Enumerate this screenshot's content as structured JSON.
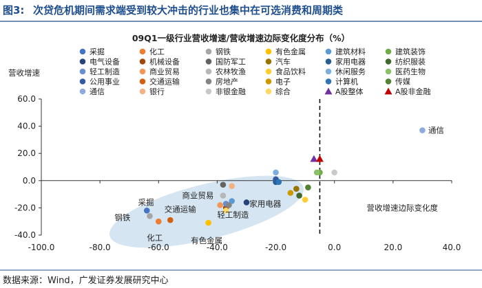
{
  "header": {
    "figure_prefix": "图3:",
    "title": "次贷危机期间需求端受到较大冲击的行业也集中在可选消费和周期类"
  },
  "footer": {
    "source": "数据来源：Wind，广发证券发展研究中心"
  },
  "colors": {
    "accent": "#1f4e8c",
    "ellipse": "#cfe0f0"
  },
  "chart_data": {
    "type": "scatter",
    "title": "09Q1一级行业营收增速/营收增速边际变化度分布（%）",
    "xlabel": "营收增速边际变化度",
    "ylabel": "营收增速",
    "xlim": [
      -100,
      40
    ],
    "ylim": [
      -40,
      60
    ],
    "xticks": [
      "-100.0",
      "-80.0",
      "-60.0",
      "-40.0",
      "-20.0",
      "0.0",
      "20.0",
      "40.0"
    ],
    "yticks": [
      "60.0",
      "40.0",
      "20.0",
      "0.0",
      "-20.0",
      "-40.0"
    ],
    "reference_line_x": -5,
    "series": [
      {
        "name": "采掘",
        "color": "#4472c4",
        "marker": "circle",
        "x": -64,
        "y": -22
      },
      {
        "name": "化工",
        "color": "#ed7d31",
        "marker": "circle",
        "x": -60,
        "y": -30
      },
      {
        "name": "钢铁",
        "color": "#a5a5a5",
        "marker": "circle",
        "x": -63,
        "y": -26
      },
      {
        "name": "有色金属",
        "color": "#ffc000",
        "marker": "circle",
        "x": -43,
        "y": -31
      },
      {
        "name": "建筑材料",
        "color": "#5b9bd5",
        "marker": "circle",
        "x": -35,
        "y": -15
      },
      {
        "name": "建筑装饰",
        "color": "#70ad47",
        "marker": "circle",
        "x": -5,
        "y": 6
      },
      {
        "name": "电气设备",
        "color": "#264478",
        "marker": "circle",
        "x": -30,
        "y": -16
      },
      {
        "name": "机械设备",
        "color": "#9e480e",
        "marker": "circle",
        "x": -37,
        "y": -20
      },
      {
        "name": "国防军工",
        "color": "#636363",
        "marker": "circle",
        "x": -38,
        "y": -3
      },
      {
        "name": "汽车",
        "color": "#997300",
        "marker": "circle",
        "x": -13,
        "y": -6
      },
      {
        "name": "家用电器",
        "color": "#255e91",
        "marker": "circle",
        "x": -20,
        "y": -1
      },
      {
        "name": "纺织服装",
        "color": "#43682b",
        "marker": "circle",
        "x": -12,
        "y": -11
      },
      {
        "name": "轻工制造",
        "color": "#698ed0",
        "marker": "circle",
        "x": -37,
        "y": -17
      },
      {
        "name": "商业贸易",
        "color": "#f1975a",
        "marker": "circle",
        "x": -39,
        "y": -18
      },
      {
        "name": "农林牧渔",
        "color": "#b7b7b7",
        "marker": "circle",
        "x": -38,
        "y": -11
      },
      {
        "name": "食品饮料",
        "color": "#ffcd33",
        "marker": "circle",
        "x": -10,
        "y": -14
      },
      {
        "name": "休闲服务",
        "color": "#7cafdd",
        "marker": "circle",
        "x": -20,
        "y": 6
      },
      {
        "name": "医药生物",
        "color": "#8cc168",
        "marker": "circle",
        "x": -6,
        "y": 6
      },
      {
        "name": "公用事业",
        "color": "#335aa1",
        "marker": "circle",
        "x": -20,
        "y": 1
      },
      {
        "name": "交通运输",
        "color": "#d26012",
        "marker": "circle",
        "x": -56,
        "y": -29
      },
      {
        "name": "房地产",
        "color": "#848484",
        "marker": "circle",
        "x": -36,
        "y": -18
      },
      {
        "name": "电子",
        "color": "#cc9a00",
        "marker": "circle",
        "x": -15,
        "y": -9
      },
      {
        "name": "计算机",
        "color": "#2e75b6",
        "marker": "circle",
        "x": -19,
        "y": -1
      },
      {
        "name": "传媒",
        "color": "#548235",
        "marker": "circle",
        "x": -9,
        "y": -5
      },
      {
        "name": "通信",
        "color": "#8faadc",
        "marker": "circle",
        "x": 30,
        "y": 37
      },
      {
        "name": "银行",
        "color": "#f4b183",
        "marker": "circle",
        "x": -35,
        "y": -4
      },
      {
        "name": "非银金融",
        "color": "#c9c9c9",
        "marker": "circle",
        "x": 0,
        "y": 6
      },
      {
        "name": "综合",
        "color": "#ffd966",
        "marker": "circle",
        "x": -37,
        "y": -22
      },
      {
        "name": "A股整体",
        "color": "#7030a0",
        "marker": "triangle",
        "x": -7,
        "y": 16
      },
      {
        "name": "A股非金融",
        "color": "#c00000",
        "marker": "triangle",
        "x": -5,
        "y": 16
      }
    ],
    "annotations": [
      {
        "text": "通信",
        "x": 32,
        "y": 37
      },
      {
        "text": "采掘",
        "x": -67,
        "y": -16
      },
      {
        "text": "商业贸易",
        "x": -52,
        "y": -11
      },
      {
        "text": "钢铁",
        "x": -75,
        "y": -27
      },
      {
        "text": "交通运输",
        "x": -58,
        "y": -21
      },
      {
        "text": "家用电器",
        "x": -29,
        "y": -17
      },
      {
        "text": "轻工制造",
        "x": -40,
        "y": -25
      },
      {
        "text": "化工",
        "x": -64,
        "y": -42
      },
      {
        "text": "有色金属",
        "x": -49,
        "y": -44
      },
      {
        "text": "营收增速边际变化度",
        "x": 11,
        "y": -20
      },
      {
        "text": "营收增速",
        "x": -107,
        "y": 77
      }
    ]
  }
}
